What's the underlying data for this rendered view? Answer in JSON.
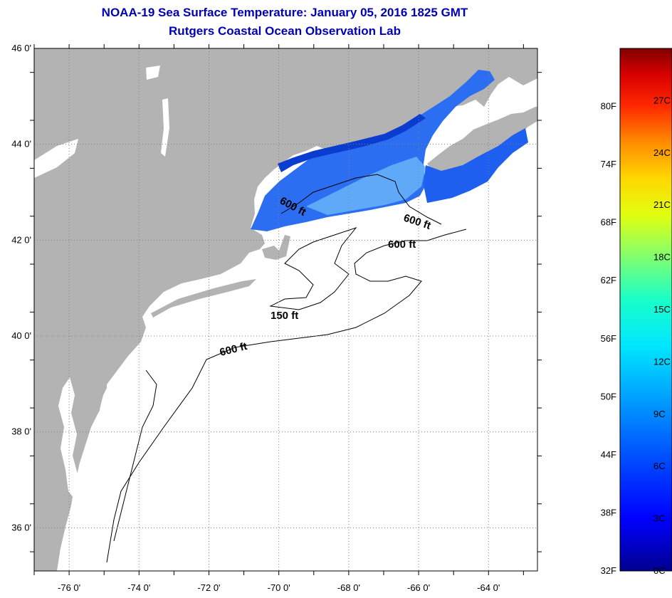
{
  "title": {
    "line1": "NOAA-19 Sea Surface Temperature:  January 05, 2016 1825 GMT",
    "line2": "Rutgers Coastal Ocean Observation Lab"
  },
  "map": {
    "lat_ticks": [
      {
        "value": 46,
        "label": "46 0'"
      },
      {
        "value": 44,
        "label": "44 0'"
      },
      {
        "value": 42,
        "label": "42 0'"
      },
      {
        "value": 40,
        "label": "40 0'"
      },
      {
        "value": 38,
        "label": "38 0'"
      },
      {
        "value": 36,
        "label": "36 0'"
      }
    ],
    "lon_ticks": [
      {
        "value": -76,
        "label": "-76 0'"
      },
      {
        "value": -74,
        "label": "-74 0'"
      },
      {
        "value": -72,
        "label": "-72 0'"
      },
      {
        "value": -70,
        "label": "-70 0'"
      },
      {
        "value": -68,
        "label": "-68 0'"
      },
      {
        "value": -66,
        "label": "-66 0'"
      },
      {
        "value": -64,
        "label": "-64 0'"
      }
    ],
    "contour_labels": [
      "600 ft",
      "600 ft",
      "600 ft",
      "150 ft",
      "600 ft"
    ],
    "colors": {
      "land": "#b3b3b3",
      "ocean": "#ffffff",
      "grid": "#7f7f7f",
      "sst_cold": "#1f5ff0",
      "sst_mid": "#3a8cf6",
      "sst_light": "#6ab4fa"
    }
  },
  "color_scale": {
    "fahrenheit": [
      "80F",
      "74F",
      "68F",
      "62F",
      "56F",
      "50F",
      "44F",
      "38F",
      "32F"
    ],
    "celsius": [
      "27C",
      "24C",
      "21C",
      "18C",
      "15C",
      "12C",
      "9C",
      "6C",
      "3C",
      "0C"
    ]
  }
}
